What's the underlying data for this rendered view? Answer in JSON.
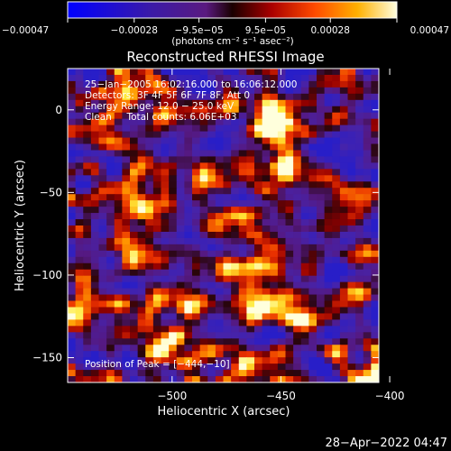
{
  "chart_data": {
    "type": "heatmap",
    "title": "Reconstructed RHESSI Image",
    "xlabel": "Heliocentric X (arcsec)",
    "ylabel": "Heliocentric Y (arcsec)",
    "xlim": [
      -548,
      -405
    ],
    "ylim": [
      -165,
      25
    ],
    "x_ticks": [
      {
        "value": -500,
        "label": "−500"
      },
      {
        "value": -450,
        "label": "−450"
      },
      {
        "value": -400,
        "label": "−400"
      }
    ],
    "y_ticks": [
      {
        "value": 0,
        "label": "0"
      },
      {
        "value": -50,
        "label": "−50"
      },
      {
        "value": -100,
        "label": "−100"
      },
      {
        "value": -150,
        "label": "−150"
      }
    ],
    "colorbar": {
      "min": -0.00047,
      "max": 0.00047,
      "tick_values": [
        -0.00047,
        -0.00028,
        -9.5e-05,
        9.5e-05,
        0.00028,
        0.00047
      ],
      "tick_labels": [
        "−0.00047",
        "−0.00028",
        "−9.5e−05",
        "9.5e−05",
        "0.00028",
        "0.00047"
      ],
      "units": "(photons cm⁻² s⁻¹ asec⁻²)"
    },
    "annotations": [
      "25−Jan−2005 16:02:16.000 to 16:06:12.000",
      "Detectors: 3F 4F 5F 6F 7F 8F, Att 0",
      "Energy Range: 12.0 − 25.0 keV",
      "Clean     Total counts: 6.06E+03"
    ],
    "peak_label": "Position of Peak = [−444,−10]",
    "peak": {
      "x": -444,
      "y": -10
    },
    "grid_cols": 40,
    "grid_rows": 50
  },
  "footer": {
    "timestamp": "28−Apr−2022 04:47"
  }
}
